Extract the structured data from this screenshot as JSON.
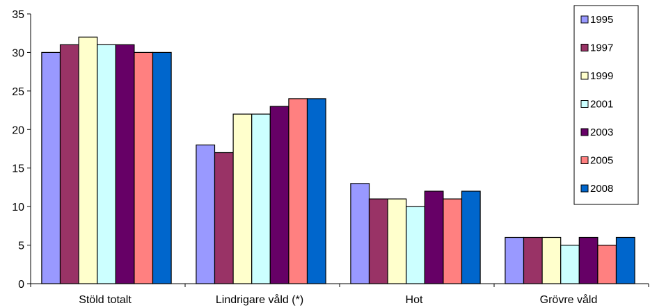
{
  "chart_data": {
    "type": "bar",
    "title": "",
    "xlabel": "",
    "ylabel": "",
    "categories": [
      "Stöld totalt",
      "Lindrigare våld (*)",
      "Hot",
      "Grövre våld"
    ],
    "ylim": [
      0,
      35
    ],
    "yticks": [
      0,
      5,
      10,
      15,
      20,
      25,
      30,
      35
    ],
    "grid": false,
    "legend_position": "top-right",
    "series": [
      {
        "name": "1995",
        "color": "#9999FF",
        "values": [
          30,
          18,
          13,
          6
        ]
      },
      {
        "name": "1997",
        "color": "#993366",
        "values": [
          31,
          17,
          11,
          6
        ]
      },
      {
        "name": "1999",
        "color": "#FFFFCC",
        "values": [
          32,
          22,
          11,
          6
        ]
      },
      {
        "name": "2001",
        "color": "#CCFFFF",
        "values": [
          31,
          22,
          10,
          5
        ]
      },
      {
        "name": "2003",
        "color": "#660066",
        "values": [
          31,
          23,
          12,
          6
        ]
      },
      {
        "name": "2005",
        "color": "#FF8080",
        "values": [
          30,
          24,
          11,
          5
        ]
      },
      {
        "name": "2008",
        "color": "#0066CC",
        "values": [
          30,
          24,
          12,
          6
        ]
      }
    ]
  }
}
